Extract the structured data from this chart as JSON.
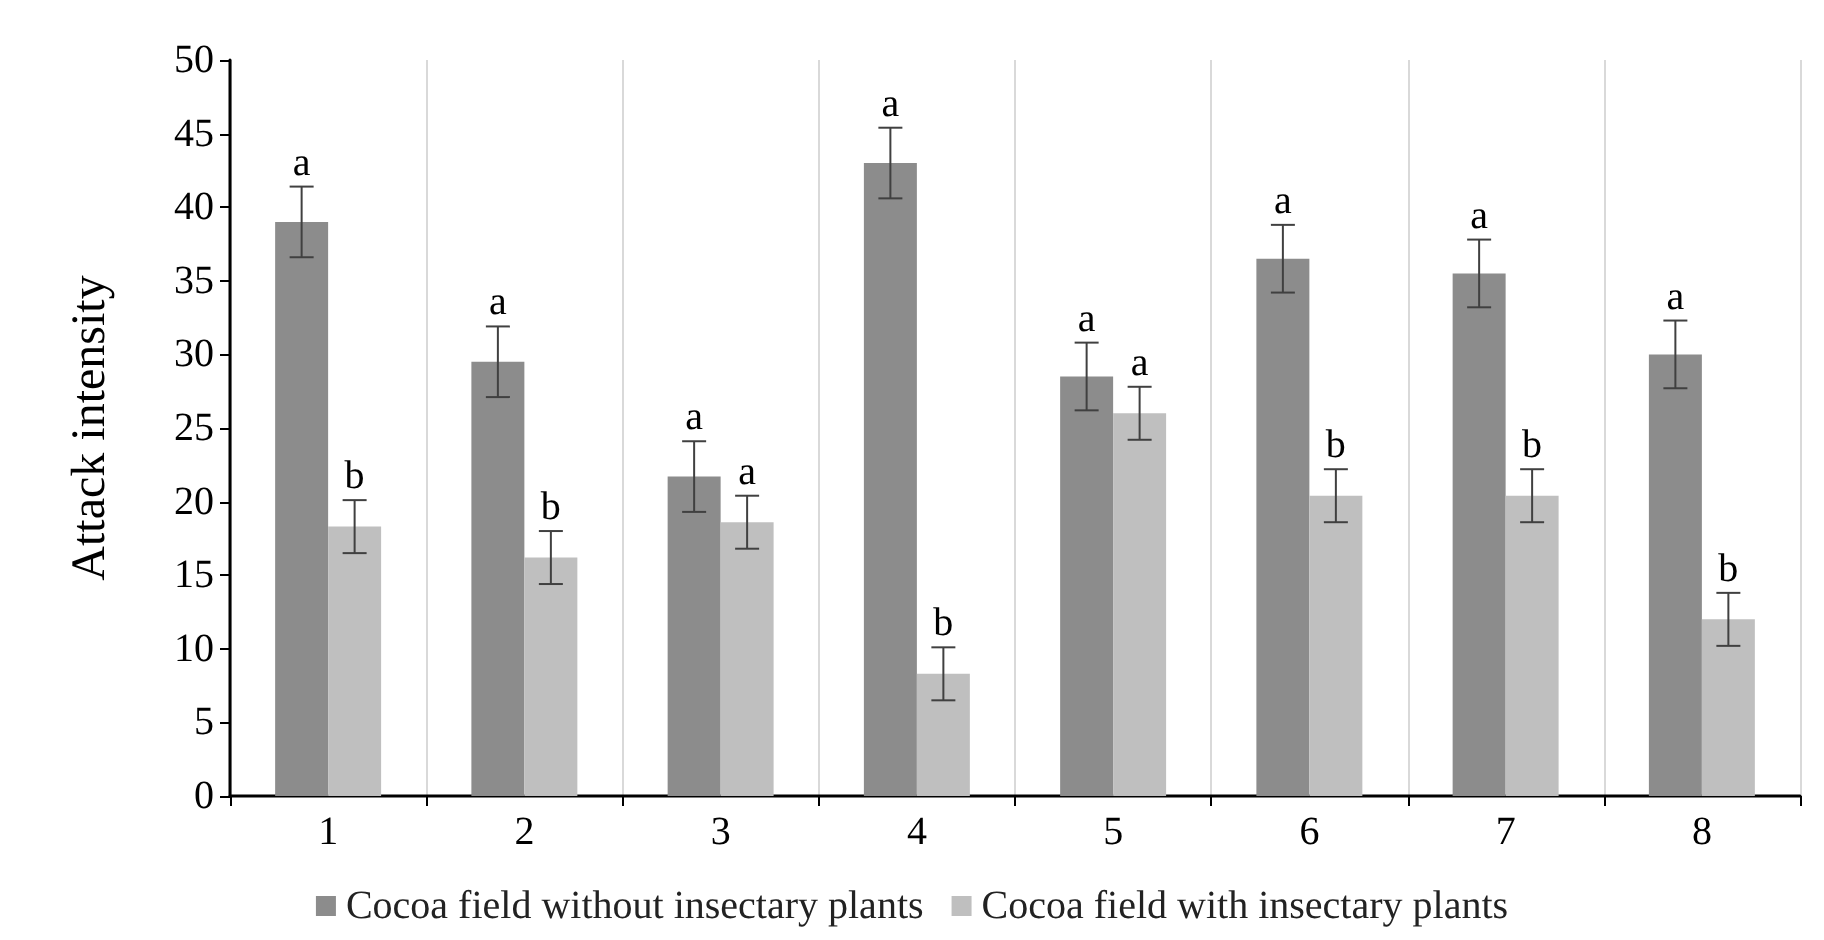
{
  "chart_data": {
    "type": "bar",
    "ylabel": "Attack intensity",
    "categories": [
      "1",
      "2",
      "3",
      "4",
      "5",
      "6",
      "7",
      "8"
    ],
    "series": [
      {
        "name": "Cocoa field without insectary plants",
        "color": "#8c8c8c",
        "values": [
          39,
          29.5,
          21.7,
          43,
          28.5,
          36.5,
          35.5,
          30
        ],
        "errors": [
          2.4,
          2.4,
          2.4,
          2.4,
          2.3,
          2.3,
          2.3,
          2.3
        ]
      },
      {
        "name": "Cocoa field with insectary plants",
        "color": "#bfbfbf",
        "values": [
          18.3,
          16.2,
          18.6,
          8.3,
          26,
          20.4,
          20.4,
          12
        ],
        "errors": [
          1.8,
          1.8,
          1.8,
          1.8,
          1.8,
          1.8,
          1.8,
          1.8
        ]
      }
    ],
    "ylim": [
      0,
      50
    ],
    "yticks": [
      0,
      5,
      10,
      15,
      20,
      25,
      30,
      35,
      40,
      45,
      50
    ],
    "grid": "x",
    "legend": "bottom",
    "annotations": [
      {
        "text": "a",
        "x": "1",
        "y": 39
      },
      {
        "text": "b",
        "x": "1",
        "y": 18.3
      },
      {
        "text": "a",
        "x": "2",
        "y": 29.5
      },
      {
        "text": "b",
        "x": "2",
        "y": 16.2
      },
      {
        "text": "a",
        "x": "3",
        "y": 21.7
      },
      {
        "text": "a",
        "x": "3",
        "y": 18.6
      },
      {
        "text": "a",
        "x": "4",
        "y": 43
      },
      {
        "text": "b",
        "x": "4",
        "y": 8.3
      },
      {
        "text": "a",
        "x": "5",
        "y": 28.5
      },
      {
        "text": "a",
        "x": "5",
        "y": 26
      },
      {
        "text": "a",
        "x": "6",
        "y": 36.5
      },
      {
        "text": "b",
        "x": "6",
        "y": 20.4
      },
      {
        "text": "a",
        "x": "7",
        "y": 35.5
      },
      {
        "text": "b",
        "x": "7",
        "y": 20.4
      },
      {
        "text": "a",
        "x": "8",
        "y": 30
      },
      {
        "text": "b",
        "x": "8",
        "y": 12
      }
    ]
  }
}
